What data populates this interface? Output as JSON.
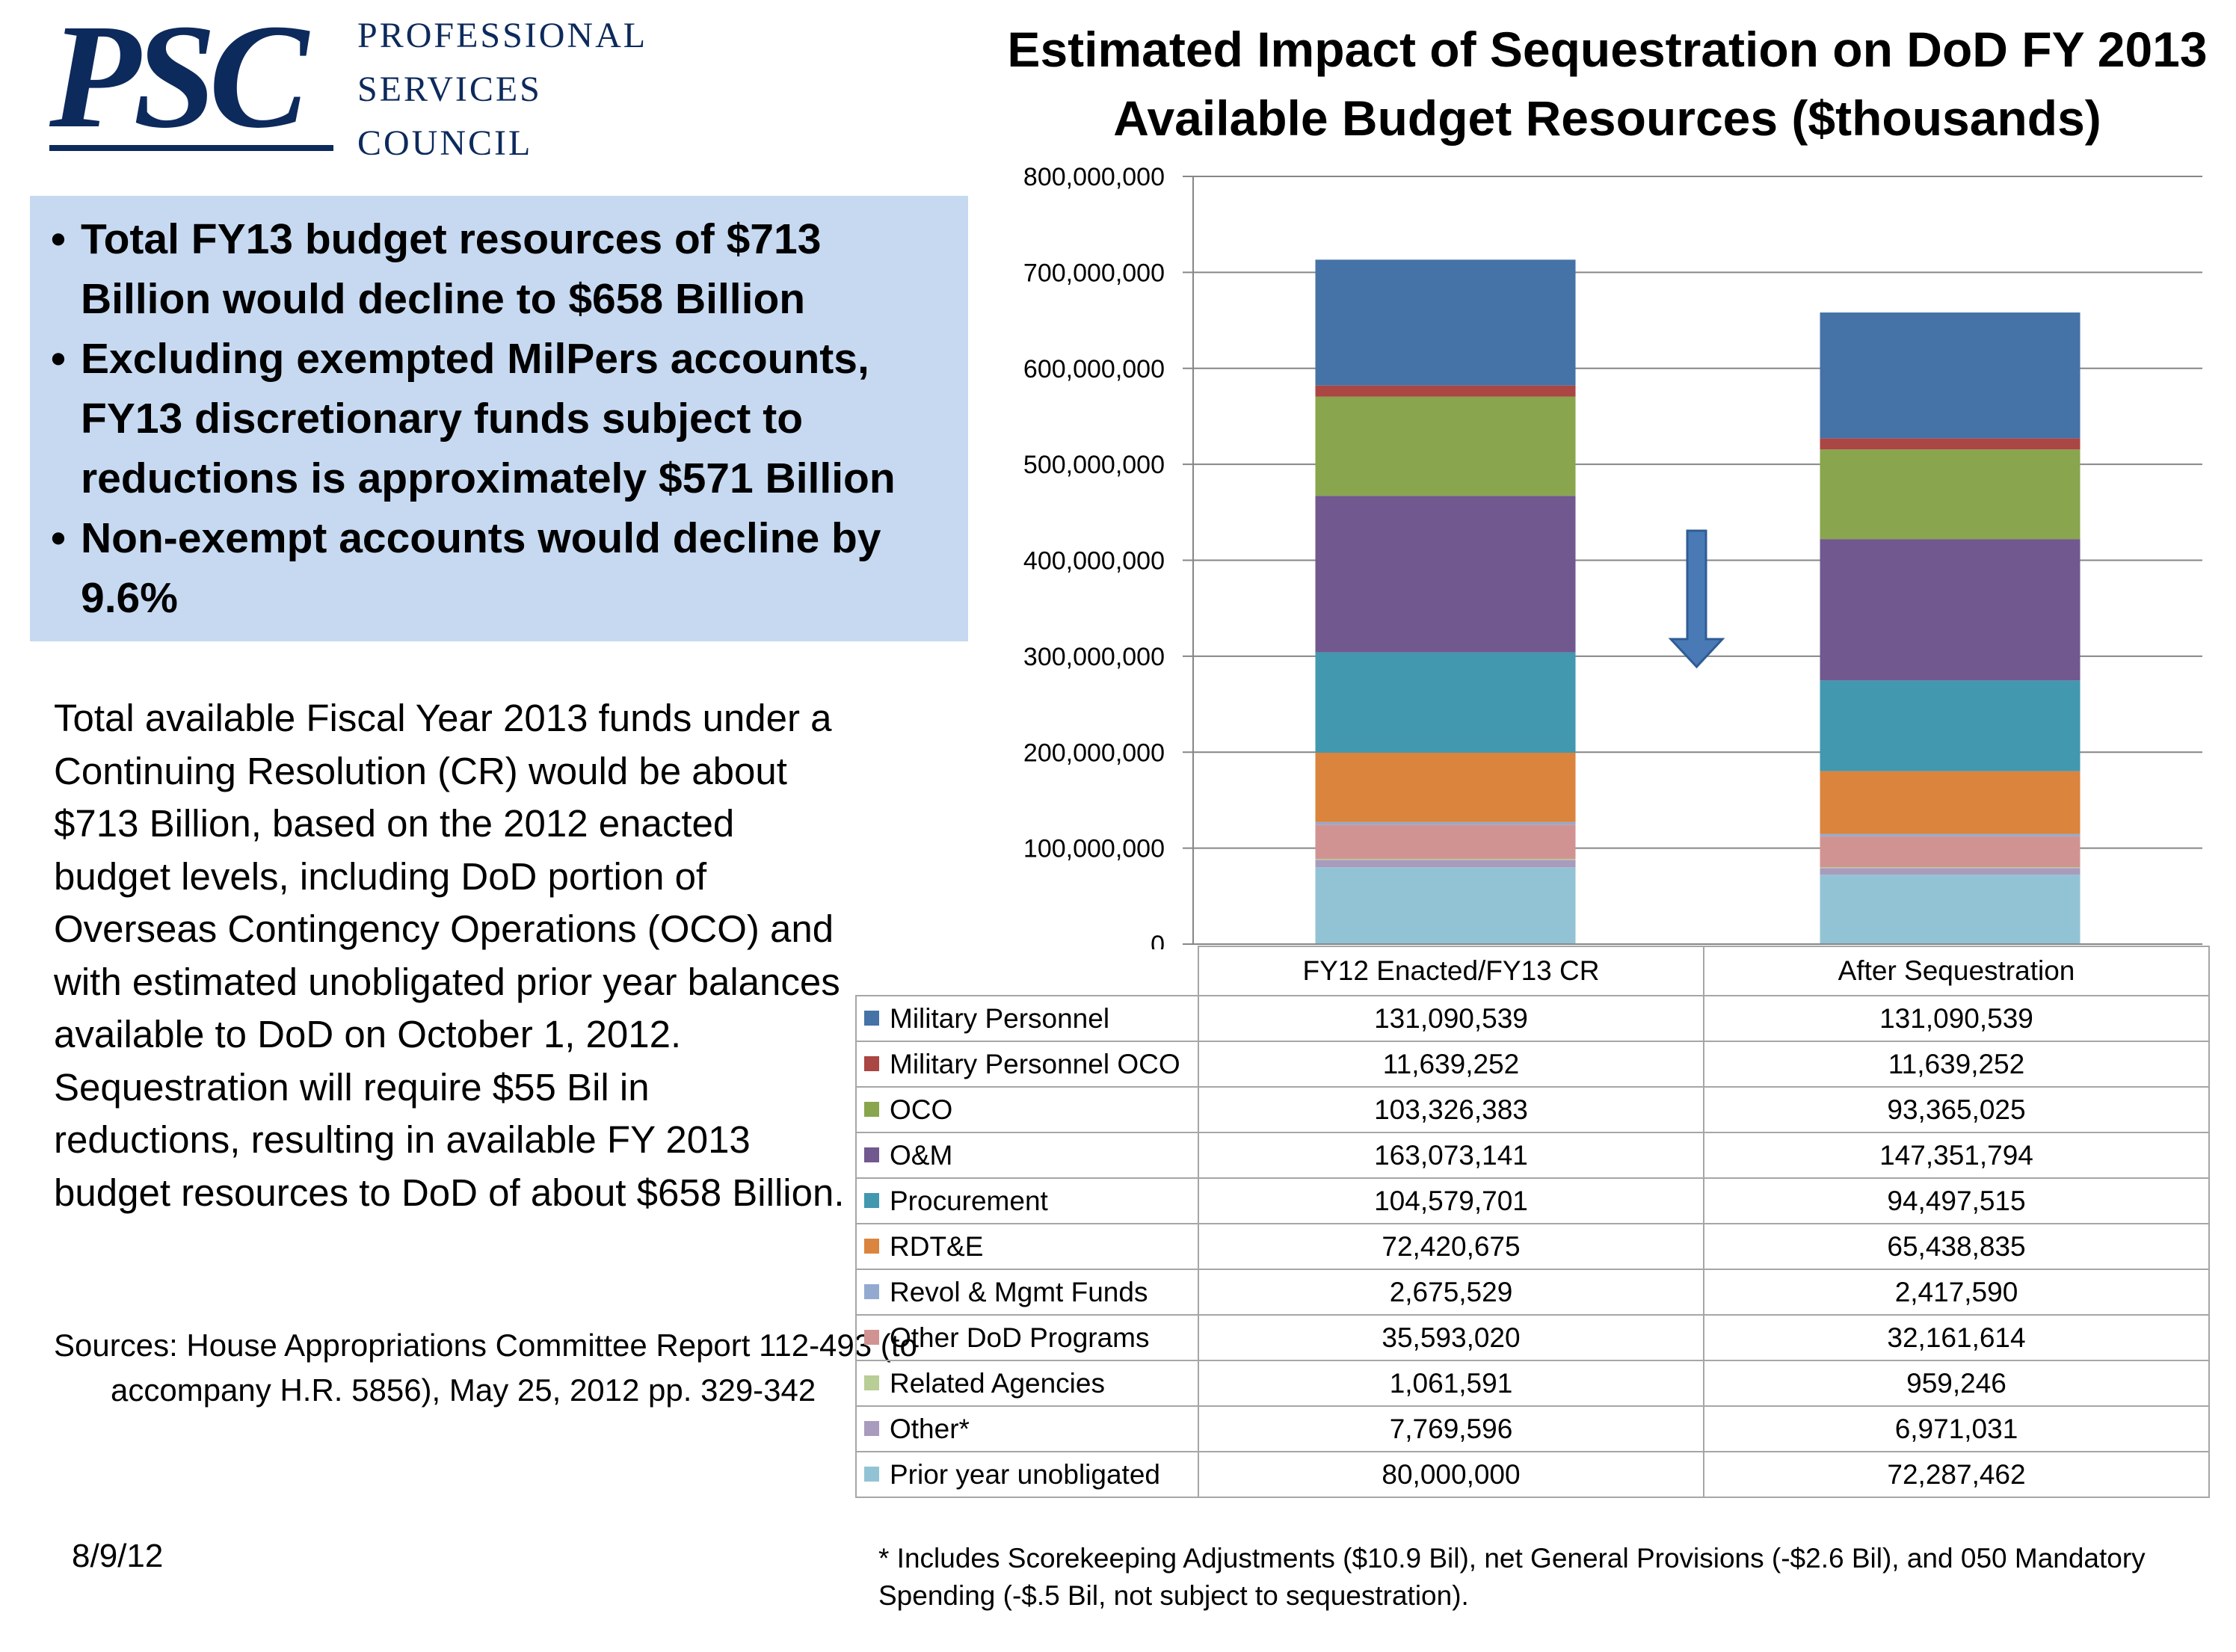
{
  "logo": {
    "mark": "PSC",
    "line1": "PROFESSIONAL",
    "line2": "SERVICES",
    "line3": "COUNCIL",
    "color": "#0d2a5c"
  },
  "bullets": [
    "Total FY13 budget resources of $713 Billion would decline to $658 Billion",
    "Excluding exempted MilPers accounts, FY13 discretionary funds subject to reductions is approximately $571 Billion",
    "Non-exempt accounts would decline by 9.6%"
  ],
  "body_text": "Total available Fiscal Year 2013 funds under a Continuing Resolution (CR) would be about $713 Billion, based on the 2012 enacted budget levels, including DoD portion of Overseas Contingency Operations (OCO) and with estimated unobligated prior year balances available to DoD on October 1, 2012. Sequestration will require $55 Bil in reductions, resulting in available FY 2013 budget resources to DoD of about $658 Billion.",
  "sources": "Sources: House Appropriations Committee Report 112-493 (to accompany H.R. 5856), May 25, 2012 pp. 329-342",
  "date": "8/9/12",
  "footnote": "* Includes Scorekeeping Adjustments ($10.9 Bil), net General Provisions (-$2.6 Bil), and 050 Mandatory Spending (-$.5 Bil, not subject to sequestration).",
  "chart_data": {
    "type": "bar",
    "stacked": true,
    "title_line1": "Estimated Impact of Sequestration on DoD FY 2013",
    "title_line2": "Available Budget Resources  ($thousands)",
    "categories": [
      "FY12 Enacted/FY13 CR",
      "After Sequestration"
    ],
    "ylim": [
      0,
      800000000
    ],
    "yticks": [
      "0",
      "100,000,000",
      "200,000,000",
      "300,000,000",
      "400,000,000",
      "500,000,000",
      "600,000,000",
      "700,000,000",
      "800,000,000"
    ],
    "ytick_values": [
      0,
      100000000,
      200000000,
      300000000,
      400000000,
      500000000,
      600000000,
      700000000,
      800000000
    ],
    "grid": true,
    "legend": "data table below chart",
    "series": [
      {
        "name": "Military Personnel",
        "color": "#4572a7",
        "values": [
          131090539,
          131090539
        ],
        "labels": [
          "131,090,539",
          "131,090,539"
        ]
      },
      {
        "name": "Military Personnel OCO",
        "color": "#aa4643",
        "values": [
          11639252,
          11639252
        ],
        "labels": [
          "11,639,252",
          "11,639,252"
        ]
      },
      {
        "name": "OCO",
        "color": "#89a54e",
        "values": [
          103326383,
          93365025
        ],
        "labels": [
          "103,326,383",
          "93,365,025"
        ]
      },
      {
        "name": "O&M",
        "color": "#71588f",
        "values": [
          163073141,
          147351794
        ],
        "labels": [
          "163,073,141",
          "147,351,794"
        ]
      },
      {
        "name": "Procurement",
        "color": "#4198af",
        "values": [
          104579701,
          94497515
        ],
        "labels": [
          "104,579,701",
          "94,497,515"
        ]
      },
      {
        "name": "RDT&E",
        "color": "#db843d",
        "values": [
          72420675,
          65438835
        ],
        "labels": [
          "72,420,675",
          "65,438,835"
        ]
      },
      {
        "name": "Revol & Mgmt Funds",
        "color": "#93a9cf",
        "values": [
          2675529,
          2417590
        ],
        "labels": [
          "2,675,529",
          "2,417,590"
        ]
      },
      {
        "name": "Other DoD Programs",
        "color": "#d19392",
        "values": [
          35593020,
          32161614
        ],
        "labels": [
          "35,593,020",
          "32,161,614"
        ]
      },
      {
        "name": "Related Agencies",
        "color": "#b9cd96",
        "values": [
          1061591,
          959246
        ],
        "labels": [
          "1,061,591",
          "959,246"
        ]
      },
      {
        "name": "Other*",
        "color": "#a99bbd",
        "values": [
          7769596,
          6971031
        ],
        "labels": [
          "7,769,596",
          "6,971,031"
        ]
      },
      {
        "name": "Prior year unobligated",
        "color": "#92c3d4",
        "values": [
          80000000,
          72287462
        ],
        "labels": [
          "80,000,000",
          "72,287,462"
        ]
      }
    ],
    "arrow_color": "#4a7ab5"
  }
}
